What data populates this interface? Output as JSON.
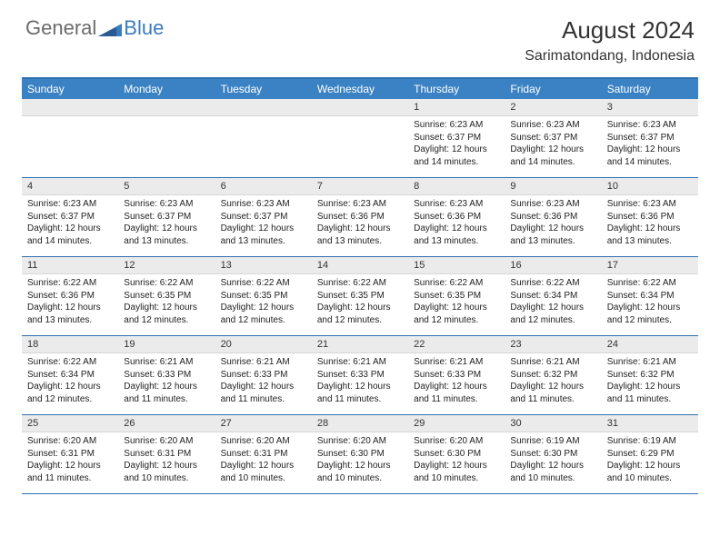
{
  "logo": {
    "text_gray": "General",
    "text_blue": "Blue"
  },
  "title": "August 2024",
  "location": "Sarimatondang, Indonesia",
  "colors": {
    "header_bg": "#3b82c4",
    "border": "#2f6fad",
    "daynum_bg": "#ebebeb",
    "logo_gray": "#6b6b6b",
    "logo_blue": "#3b7bbf"
  },
  "day_names": [
    "Sunday",
    "Monday",
    "Tuesday",
    "Wednesday",
    "Thursday",
    "Friday",
    "Saturday"
  ],
  "weeks": [
    [
      null,
      null,
      null,
      null,
      {
        "n": "1",
        "sr": "6:23 AM",
        "ss": "6:37 PM",
        "dl": "12 hours and 14 minutes."
      },
      {
        "n": "2",
        "sr": "6:23 AM",
        "ss": "6:37 PM",
        "dl": "12 hours and 14 minutes."
      },
      {
        "n": "3",
        "sr": "6:23 AM",
        "ss": "6:37 PM",
        "dl": "12 hours and 14 minutes."
      }
    ],
    [
      {
        "n": "4",
        "sr": "6:23 AM",
        "ss": "6:37 PM",
        "dl": "12 hours and 14 minutes."
      },
      {
        "n": "5",
        "sr": "6:23 AM",
        "ss": "6:37 PM",
        "dl": "12 hours and 13 minutes."
      },
      {
        "n": "6",
        "sr": "6:23 AM",
        "ss": "6:37 PM",
        "dl": "12 hours and 13 minutes."
      },
      {
        "n": "7",
        "sr": "6:23 AM",
        "ss": "6:36 PM",
        "dl": "12 hours and 13 minutes."
      },
      {
        "n": "8",
        "sr": "6:23 AM",
        "ss": "6:36 PM",
        "dl": "12 hours and 13 minutes."
      },
      {
        "n": "9",
        "sr": "6:23 AM",
        "ss": "6:36 PM",
        "dl": "12 hours and 13 minutes."
      },
      {
        "n": "10",
        "sr": "6:23 AM",
        "ss": "6:36 PM",
        "dl": "12 hours and 13 minutes."
      }
    ],
    [
      {
        "n": "11",
        "sr": "6:22 AM",
        "ss": "6:36 PM",
        "dl": "12 hours and 13 minutes."
      },
      {
        "n": "12",
        "sr": "6:22 AM",
        "ss": "6:35 PM",
        "dl": "12 hours and 12 minutes."
      },
      {
        "n": "13",
        "sr": "6:22 AM",
        "ss": "6:35 PM",
        "dl": "12 hours and 12 minutes."
      },
      {
        "n": "14",
        "sr": "6:22 AM",
        "ss": "6:35 PM",
        "dl": "12 hours and 12 minutes."
      },
      {
        "n": "15",
        "sr": "6:22 AM",
        "ss": "6:35 PM",
        "dl": "12 hours and 12 minutes."
      },
      {
        "n": "16",
        "sr": "6:22 AM",
        "ss": "6:34 PM",
        "dl": "12 hours and 12 minutes."
      },
      {
        "n": "17",
        "sr": "6:22 AM",
        "ss": "6:34 PM",
        "dl": "12 hours and 12 minutes."
      }
    ],
    [
      {
        "n": "18",
        "sr": "6:22 AM",
        "ss": "6:34 PM",
        "dl": "12 hours and 12 minutes."
      },
      {
        "n": "19",
        "sr": "6:21 AM",
        "ss": "6:33 PM",
        "dl": "12 hours and 11 minutes."
      },
      {
        "n": "20",
        "sr": "6:21 AM",
        "ss": "6:33 PM",
        "dl": "12 hours and 11 minutes."
      },
      {
        "n": "21",
        "sr": "6:21 AM",
        "ss": "6:33 PM",
        "dl": "12 hours and 11 minutes."
      },
      {
        "n": "22",
        "sr": "6:21 AM",
        "ss": "6:33 PM",
        "dl": "12 hours and 11 minutes."
      },
      {
        "n": "23",
        "sr": "6:21 AM",
        "ss": "6:32 PM",
        "dl": "12 hours and 11 minutes."
      },
      {
        "n": "24",
        "sr": "6:21 AM",
        "ss": "6:32 PM",
        "dl": "12 hours and 11 minutes."
      }
    ],
    [
      {
        "n": "25",
        "sr": "6:20 AM",
        "ss": "6:31 PM",
        "dl": "12 hours and 11 minutes."
      },
      {
        "n": "26",
        "sr": "6:20 AM",
        "ss": "6:31 PM",
        "dl": "12 hours and 10 minutes."
      },
      {
        "n": "27",
        "sr": "6:20 AM",
        "ss": "6:31 PM",
        "dl": "12 hours and 10 minutes."
      },
      {
        "n": "28",
        "sr": "6:20 AM",
        "ss": "6:30 PM",
        "dl": "12 hours and 10 minutes."
      },
      {
        "n": "29",
        "sr": "6:20 AM",
        "ss": "6:30 PM",
        "dl": "12 hours and 10 minutes."
      },
      {
        "n": "30",
        "sr": "6:19 AM",
        "ss": "6:30 PM",
        "dl": "12 hours and 10 minutes."
      },
      {
        "n": "31",
        "sr": "6:19 AM",
        "ss": "6:29 PM",
        "dl": "12 hours and 10 minutes."
      }
    ]
  ],
  "labels": {
    "sunrise": "Sunrise:",
    "sunset": "Sunset:",
    "daylight": "Daylight:"
  }
}
